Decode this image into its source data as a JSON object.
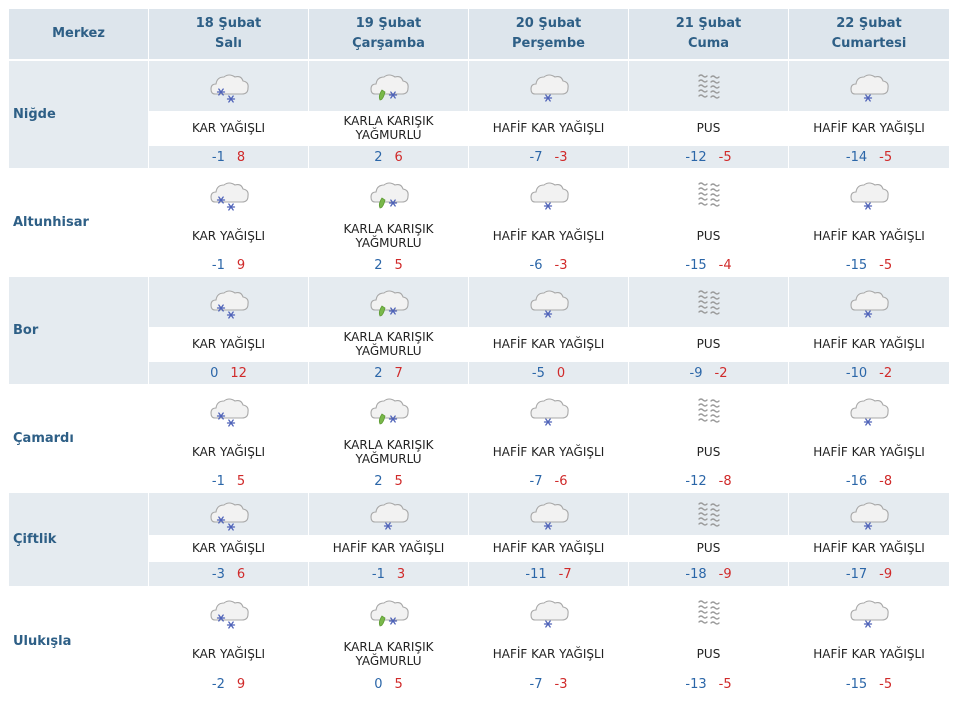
{
  "header": {
    "center_label": "Merkez",
    "days": [
      {
        "date": "18 Şubat",
        "weekday": "Salı"
      },
      {
        "date": "19 Şubat",
        "weekday": "Çarşamba"
      },
      {
        "date": "20 Şubat",
        "weekday": "Perşembe"
      },
      {
        "date": "21 Şubat",
        "weekday": "Cuma"
      },
      {
        "date": "22 Şubat",
        "weekday": "Cumartesi"
      }
    ]
  },
  "colors": {
    "header_bg": "#dde5ec",
    "band_bg": "#e5ebf0",
    "header_text": "#2e5f86",
    "min_temp": "#2b66a8",
    "max_temp": "#d02a2a"
  },
  "icons": {
    "snow": "snow-cloud-icon",
    "sleet": "sleet-cloud-icon",
    "light_snow": "light-snow-cloud-icon",
    "fog": "fog-icon"
  },
  "rows": [
    {
      "name": "Niğde",
      "days": [
        {
          "icon": "snow",
          "desc": "KAR YAĞIŞLI",
          "min": "-1",
          "max": "8"
        },
        {
          "icon": "sleet",
          "desc": "KARLA KARIŞIK YAĞMURLU",
          "min": "2",
          "max": "6"
        },
        {
          "icon": "light_snow",
          "desc": "HAFİF KAR YAĞIŞLI",
          "min": "-7",
          "max": "-3"
        },
        {
          "icon": "fog",
          "desc": "PUS",
          "min": "-12",
          "max": "-5"
        },
        {
          "icon": "light_snow",
          "desc": "HAFİF KAR YAĞIŞLI",
          "min": "-14",
          "max": "-5"
        }
      ]
    },
    {
      "name": "Altunhisar",
      "days": [
        {
          "icon": "snow",
          "desc": "KAR YAĞIŞLI",
          "min": "-1",
          "max": "9"
        },
        {
          "icon": "sleet",
          "desc": "KARLA KARIŞIK YAĞMURLU",
          "min": "2",
          "max": "5"
        },
        {
          "icon": "light_snow",
          "desc": "HAFİF KAR YAĞIŞLI",
          "min": "-6",
          "max": "-3"
        },
        {
          "icon": "fog",
          "desc": "PUS",
          "min": "-15",
          "max": "-4"
        },
        {
          "icon": "light_snow",
          "desc": "HAFİF KAR YAĞIŞLI",
          "min": "-15",
          "max": "-5"
        }
      ]
    },
    {
      "name": "Bor",
      "days": [
        {
          "icon": "snow",
          "desc": "KAR YAĞIŞLI",
          "min": "0",
          "max": "12"
        },
        {
          "icon": "sleet",
          "desc": "KARLA KARIŞIK YAĞMURLU",
          "min": "2",
          "max": "7"
        },
        {
          "icon": "light_snow",
          "desc": "HAFİF KAR YAĞIŞLI",
          "min": "-5",
          "max": "0"
        },
        {
          "icon": "fog",
          "desc": "PUS",
          "min": "-9",
          "max": "-2"
        },
        {
          "icon": "light_snow",
          "desc": "HAFİF KAR YAĞIŞLI",
          "min": "-10",
          "max": "-2"
        }
      ]
    },
    {
      "name": "Çamardı",
      "days": [
        {
          "icon": "snow",
          "desc": "KAR YAĞIŞLI",
          "min": "-1",
          "max": "5"
        },
        {
          "icon": "sleet",
          "desc": "KARLA KARIŞIK YAĞMURLU",
          "min": "2",
          "max": "5"
        },
        {
          "icon": "light_snow",
          "desc": "HAFİF KAR YAĞIŞLI",
          "min": "-7",
          "max": "-6"
        },
        {
          "icon": "fog",
          "desc": "PUS",
          "min": "-12",
          "max": "-8"
        },
        {
          "icon": "light_snow",
          "desc": "HAFİF KAR YAĞIŞLI",
          "min": "-16",
          "max": "-8"
        }
      ]
    },
    {
      "name": "Çiftlik",
      "days": [
        {
          "icon": "snow",
          "desc": "KAR YAĞIŞLI",
          "min": "-3",
          "max": "6"
        },
        {
          "icon": "light_snow",
          "desc": "HAFİF KAR YAĞIŞLI",
          "min": "-1",
          "max": "3"
        },
        {
          "icon": "light_snow",
          "desc": "HAFİF KAR YAĞIŞLI",
          "min": "-11",
          "max": "-7"
        },
        {
          "icon": "fog",
          "desc": "PUS",
          "min": "-18",
          "max": "-9"
        },
        {
          "icon": "light_snow",
          "desc": "HAFİF KAR YAĞIŞLI",
          "min": "-17",
          "max": "-9"
        }
      ]
    },
    {
      "name": "Ulukışla",
      "days": [
        {
          "icon": "snow",
          "desc": "KAR YAĞIŞLI",
          "min": "-2",
          "max": "9"
        },
        {
          "icon": "sleet",
          "desc": "KARLA KARIŞIK YAĞMURLU",
          "min": "0",
          "max": "5"
        },
        {
          "icon": "light_snow",
          "desc": "HAFİF KAR YAĞIŞLI",
          "min": "-7",
          "max": "-3"
        },
        {
          "icon": "fog",
          "desc": "PUS",
          "min": "-13",
          "max": "-5"
        },
        {
          "icon": "light_snow",
          "desc": "HAFİF KAR YAĞIŞLI",
          "min": "-15",
          "max": "-5"
        }
      ]
    }
  ]
}
